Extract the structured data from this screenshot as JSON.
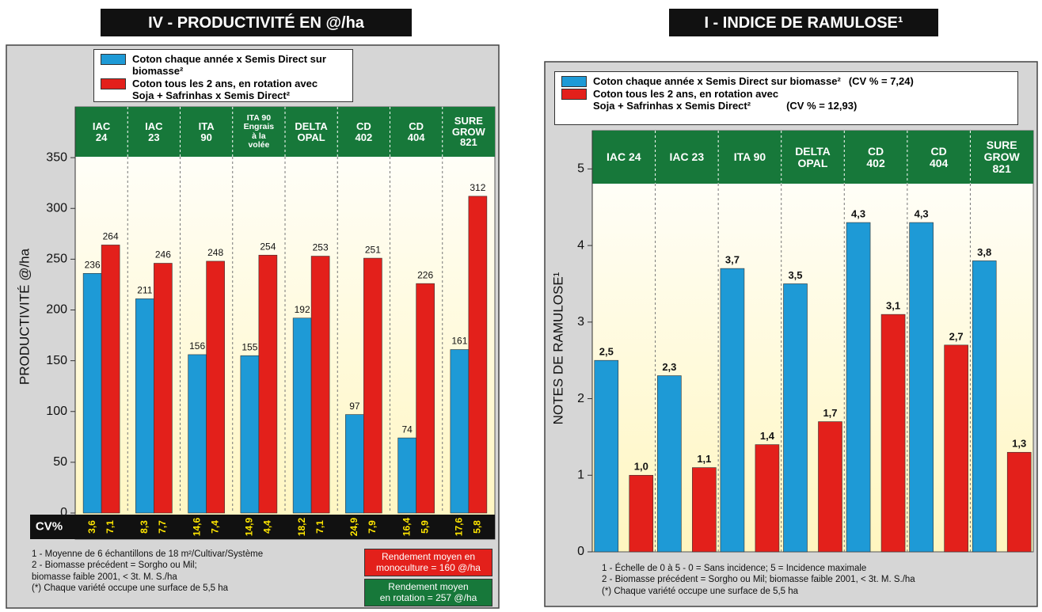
{
  "chart_data": [
    {
      "type": "bar",
      "title": "IV - PRODUCTIVITÉ EN @/ha",
      "y_label": "PRODUCTIVITÉ @/ha",
      "categories": [
        "IAC\n24",
        "IAC\n23",
        "ITA\n90",
        "ITA 90\nEngrais\nà la\nvolée",
        "DELTA\nOPAL",
        "CD\n402",
        "CD\n404",
        "SURE\nGROW\n821"
      ],
      "series": [
        {
          "name": "Coton chaque année x Semis Direct sur biomasse²",
          "color": "#1e9ad6",
          "values": [
            236,
            211,
            156,
            155,
            192,
            97,
            74,
            161
          ]
        },
        {
          "name": "Coton tous les 2 ans, en rotation avec\nSoja + Safrinhas x Semis Direct²",
          "color": "#e3201b",
          "values": [
            264,
            246,
            248,
            254,
            253,
            251,
            226,
            312
          ]
        }
      ],
      "ylim": [
        0,
        400
      ],
      "yticks": [
        0,
        50,
        100,
        150,
        200,
        250,
        300,
        350
      ],
      "grid": false,
      "header_color": "#17783a",
      "cv_row": {
        "label": "CV%",
        "values": [
          [
            "3,6",
            "7,1"
          ],
          [
            "8,3",
            "7,7"
          ],
          [
            "14,6",
            "7,4"
          ],
          [
            "14,9",
            "4,4"
          ],
          [
            "18,2",
            "7,1"
          ],
          [
            "24,9",
            "7,9"
          ],
          [
            "16,4",
            "5,9"
          ],
          [
            "17,6",
            "5,8"
          ]
        ]
      },
      "notes": [
        "1 - Moyenne de 6 échantillons de 18 m²/Cultivar/Système",
        "2 - Biomasse précédent = Sorgho ou Mil;\n     biomasse faible 2001, < 3t. M. S./ha",
        "(*) Chaque variété occupe une surface de 5,5 ha"
      ],
      "summary_boxes": [
        {
          "text": "Rendement moyen en\nmonoculture = 160 @/ha",
          "color": "#e3201b"
        },
        {
          "text": "Rendement moyen\nen rotation = 257 @/ha",
          "color": "#17783a"
        }
      ]
    },
    {
      "type": "bar",
      "title": "I - INDICE DE RAMULOSE¹",
      "y_label": "NOTES DE RAMULOSE¹",
      "categories": [
        "IAC 24",
        "IAC 23",
        "ITA 90",
        "DELTA\nOPAL",
        "CD\n402",
        "CD\n404",
        "SURE\nGROW\n821"
      ],
      "series": [
        {
          "name": "Coton chaque année x Semis Direct sur biomasse²",
          "cv_label": "(CV % = 7,24)",
          "color": "#1e9ad6",
          "values": [
            2.5,
            2.3,
            3.7,
            3.5,
            4.3,
            4.3,
            3.8
          ],
          "value_labels": [
            "2,5",
            "2,3",
            "3,7",
            "3,5",
            "4,3",
            "4,3",
            "3,8"
          ]
        },
        {
          "name": "Coton tous les 2 ans, en rotation avec\nSoja + Safrinhas x Semis Direct²",
          "cv_label": "(CV % = 12,93)",
          "color": "#e3201b",
          "values": [
            1.0,
            1.1,
            1.4,
            1.7,
            3.1,
            2.7,
            1.3
          ],
          "value_labels": [
            "1,0",
            "1,1",
            "1,4",
            "1,7",
            "3,1",
            "2,7",
            "1,3"
          ]
        }
      ],
      "ylim": [
        0,
        5.5
      ],
      "yticks": [
        0,
        1,
        2,
        3,
        4,
        5
      ],
      "grid": false,
      "header_color": "#17783a",
      "notes": [
        "1 - Échelle de 0 à 5  - 0 = Sans incidence; 5 = Incidence maximale",
        "2 - Biomasse précédent = Sorgho ou Mil; biomasse faible 2001, < 3t. M. S./ha",
        "(*) Chaque variété occupe une surface de 5,5 ha"
      ]
    }
  ]
}
